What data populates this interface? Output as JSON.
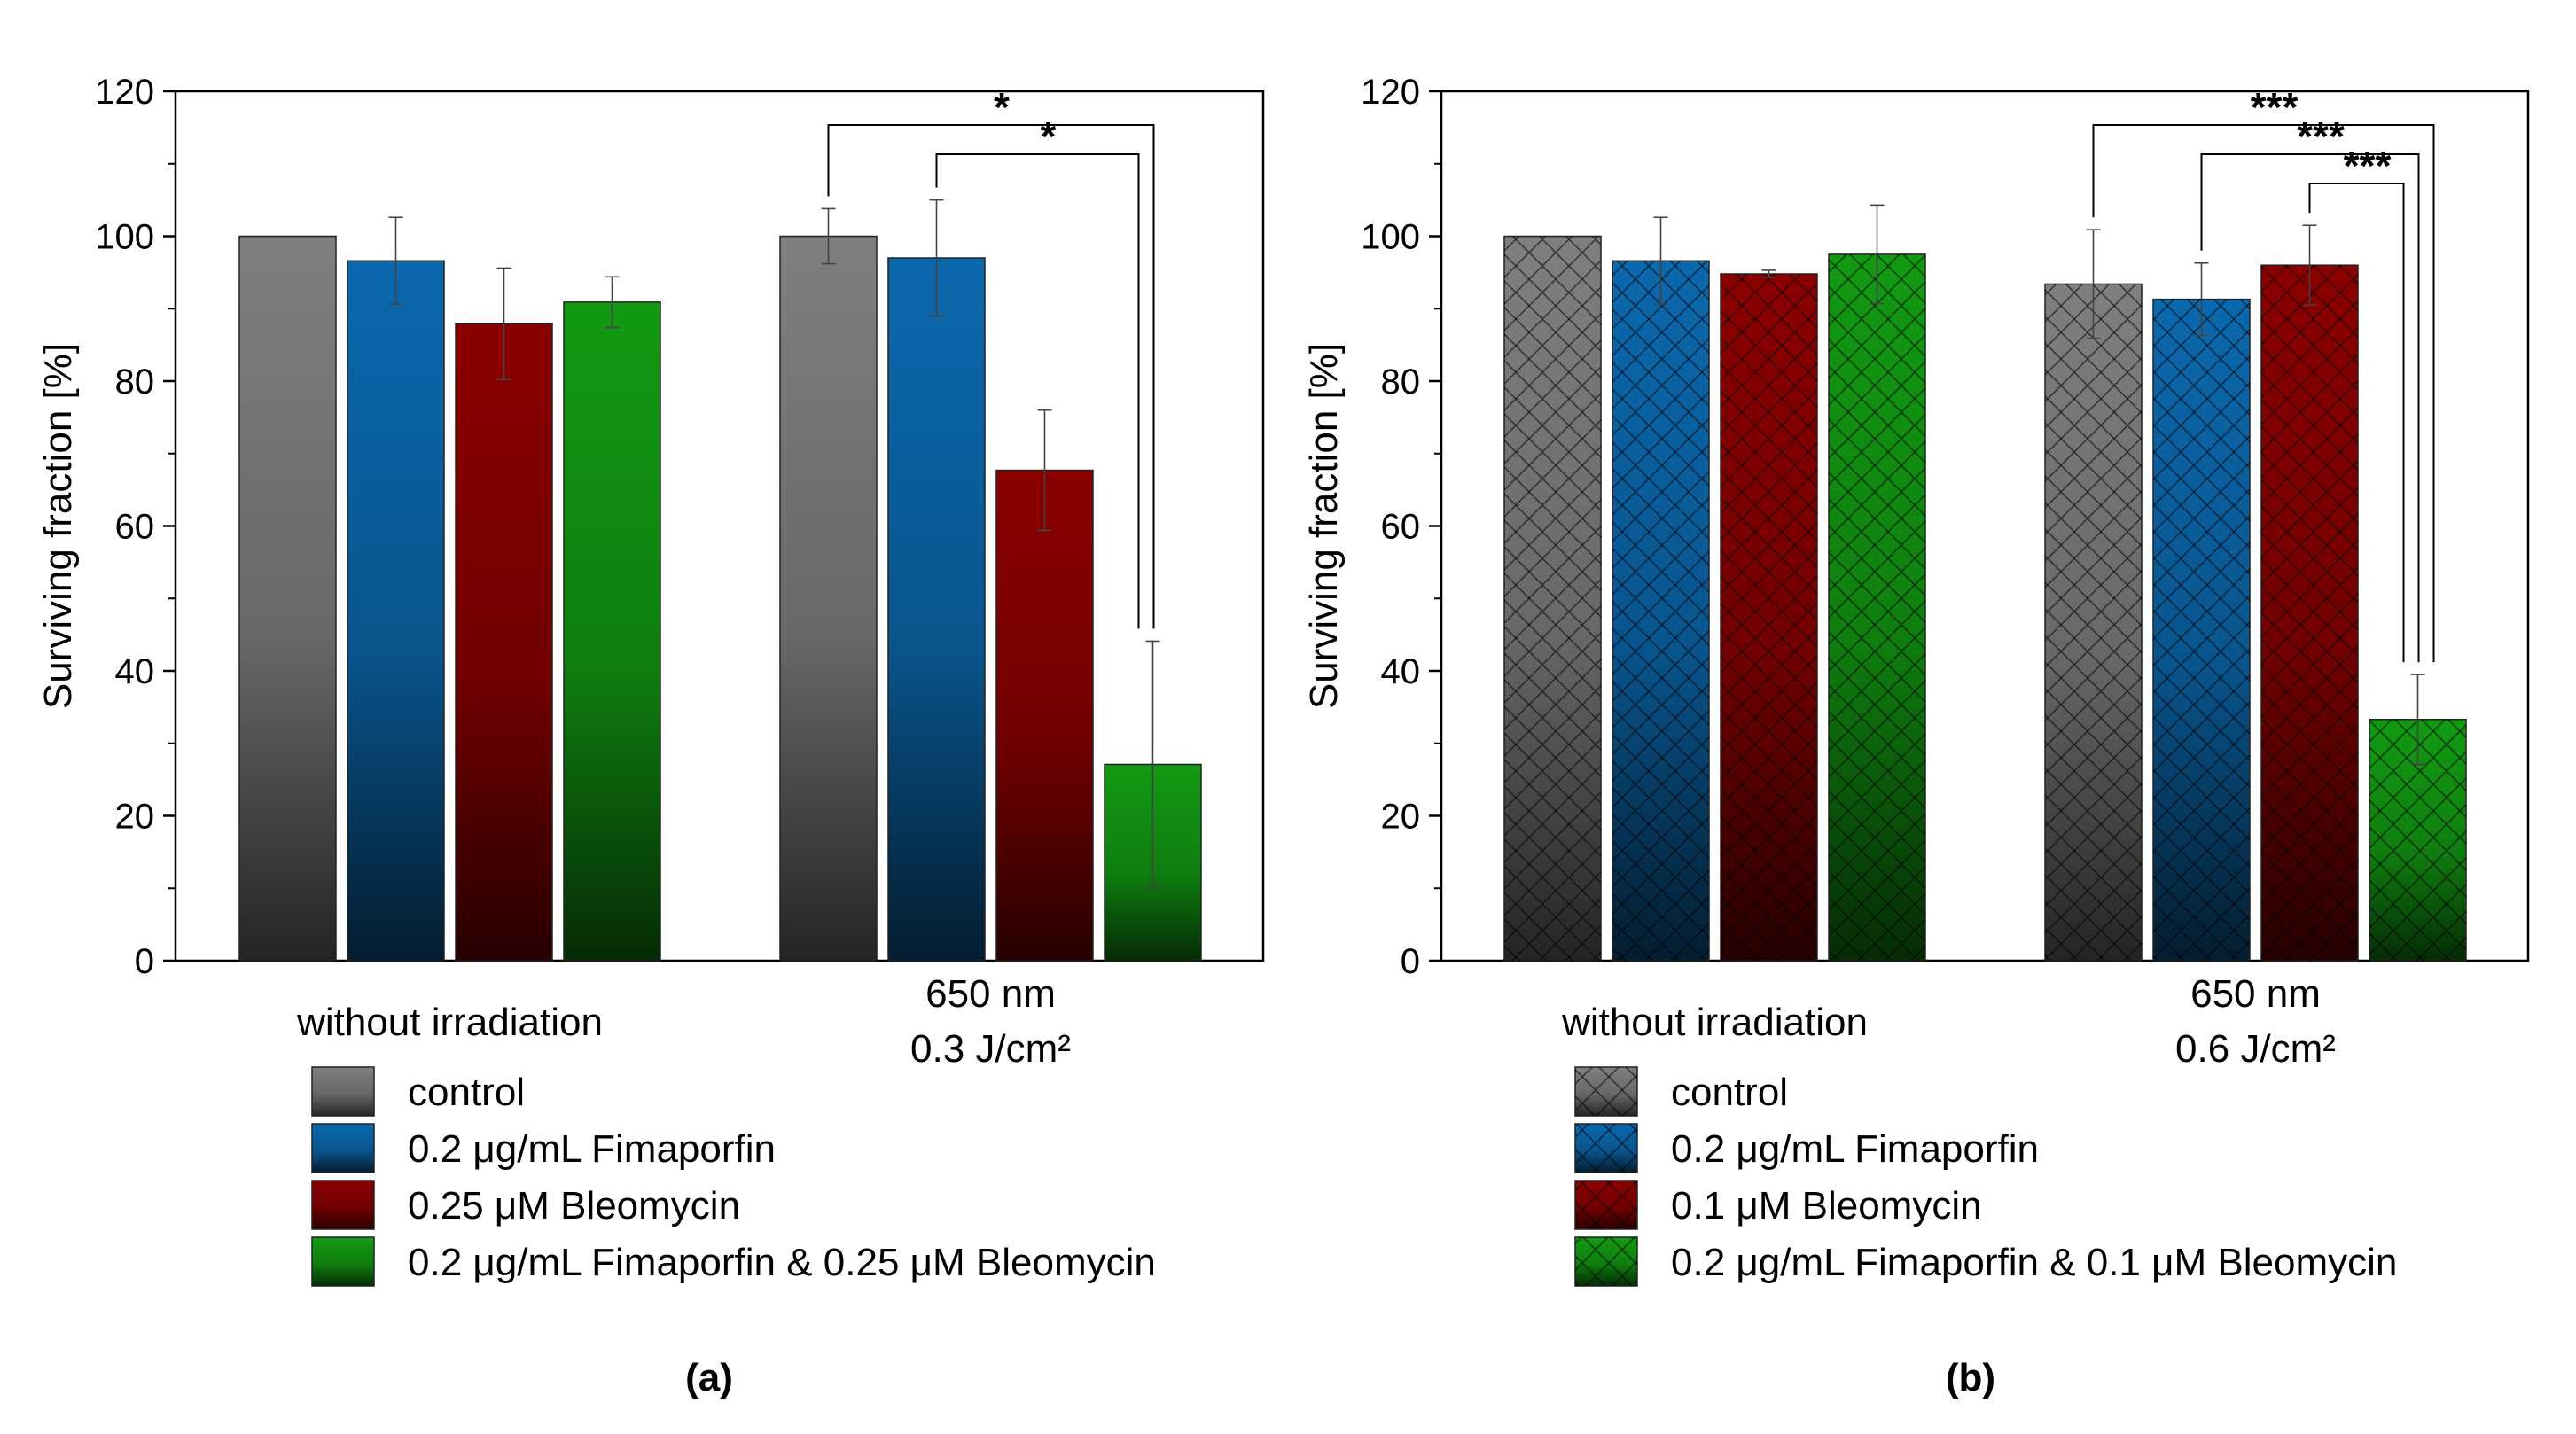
{
  "chart_data": [
    {
      "type": "bar",
      "panel_label": "(a)",
      "ylabel": "Surviving fraction [%]",
      "xlabel": "",
      "ylim": [
        0,
        120
      ],
      "yticks": [
        0,
        20,
        40,
        60,
        80,
        100,
        120
      ],
      "hatched": false,
      "groups": [
        {
          "label_lines": [
            "without irradiation"
          ]
        },
        {
          "label_lines": [
            "650 nm",
            "0.3 J/cm²"
          ]
        }
      ],
      "series": [
        {
          "name": "control",
          "color": "#7f7f7f",
          "values": [
            100,
            100
          ],
          "errors": [
            0,
            3.8
          ]
        },
        {
          "name": "0.2 μg/mL Fimaporfin",
          "color": "#0b68ad",
          "values": [
            96.6,
            97.0
          ],
          "errors": [
            6.0,
            8.0
          ]
        },
        {
          "name": "0.25 μM Bleomycin",
          "color": "#8b0000",
          "values": [
            87.9,
            67.7
          ],
          "errors": [
            7.7,
            8.3
          ]
        },
        {
          "name": "0.2 μg/mL Fimaporfin & 0.25 μM Bleomycin",
          "color": "#129a12",
          "values": [
            90.9,
            27.1
          ],
          "errors": [
            3.5,
            17.0
          ]
        }
      ],
      "significance": [
        {
          "from_series": 0,
          "to_series": 3,
          "group": 1,
          "label": "*"
        },
        {
          "from_series": 1,
          "to_series": 3,
          "group": 1,
          "label": "*"
        }
      ]
    },
    {
      "type": "bar",
      "panel_label": "(b)",
      "ylabel": "Surviving fraction [%]",
      "xlabel": "",
      "ylim": [
        0,
        120
      ],
      "yticks": [
        0,
        20,
        40,
        60,
        80,
        100,
        120
      ],
      "hatched": true,
      "groups": [
        {
          "label_lines": [
            "without irradiation"
          ]
        },
        {
          "label_lines": [
            "650 nm",
            "0.6 J/cm²"
          ]
        }
      ],
      "series": [
        {
          "name": "control",
          "color": "#7f7f7f",
          "values": [
            100,
            93.4
          ],
          "errors": [
            0,
            7.5
          ]
        },
        {
          "name": "0.2 μg/mL Fimaporfin",
          "color": "#0b68ad",
          "values": [
            96.6,
            91.3
          ],
          "errors": [
            6.0,
            5.0
          ]
        },
        {
          "name": "0.1 μM Bleomycin",
          "color": "#8b0000",
          "values": [
            94.8,
            96.0
          ],
          "errors": [
            0.5,
            5.5
          ]
        },
        {
          "name": "0.2 μg/mL Fimaporfin & 0.1 μM Bleomycin",
          "color": "#129a12",
          "values": [
            97.5,
            33.3
          ],
          "errors": [
            6.8,
            6.2
          ]
        }
      ],
      "significance": [
        {
          "from_series": 0,
          "to_series": 3,
          "group": 1,
          "label": "***"
        },
        {
          "from_series": 1,
          "to_series": 3,
          "group": 1,
          "label": "***"
        },
        {
          "from_series": 2,
          "to_series": 3,
          "group": 1,
          "label": "***"
        }
      ]
    }
  ]
}
